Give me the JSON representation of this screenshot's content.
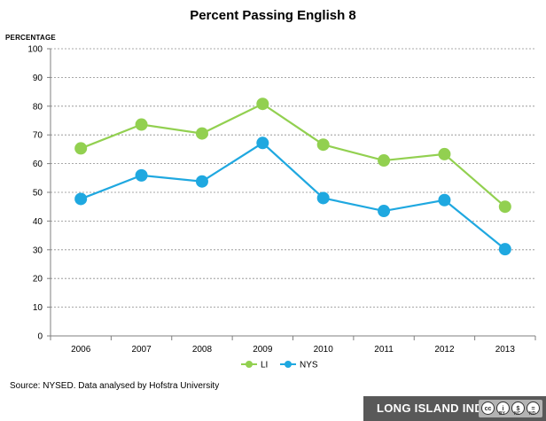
{
  "chart_data": {
    "type": "line",
    "title": "Percent Passing English 8",
    "ylabel": "PERCENTAGE",
    "xlabel": "",
    "categories": [
      "2006",
      "2007",
      "2008",
      "2009",
      "2010",
      "2011",
      "2012",
      "2013"
    ],
    "ylim": [
      0,
      100
    ],
    "yticks": [
      "0",
      "10",
      "20",
      "30",
      "40",
      "50",
      "60",
      "70",
      "80",
      "90",
      "100"
    ],
    "grid": true,
    "legend_position": "bottom",
    "series": [
      {
        "name": "LI",
        "color": "#92d050",
        "values": [
          65.3,
          73.6,
          70.5,
          80.8,
          66.6,
          61.1,
          63.3,
          45.0
        ]
      },
      {
        "name": "NYS",
        "color": "#1fa8e0",
        "values": [
          47.7,
          55.9,
          53.8,
          67.2,
          48.0,
          43.5,
          47.3,
          30.2
        ]
      }
    ]
  },
  "source": "Source: NYSED. Data analysed by Hofstra University",
  "footer": {
    "brand": "LONG ISLAND INDEX",
    "cc_icons": [
      "cc",
      "by",
      "nc",
      "nd"
    ],
    "cc_labels": {
      "by": "BY",
      "nc": "NC",
      "nd": "ND"
    }
  }
}
